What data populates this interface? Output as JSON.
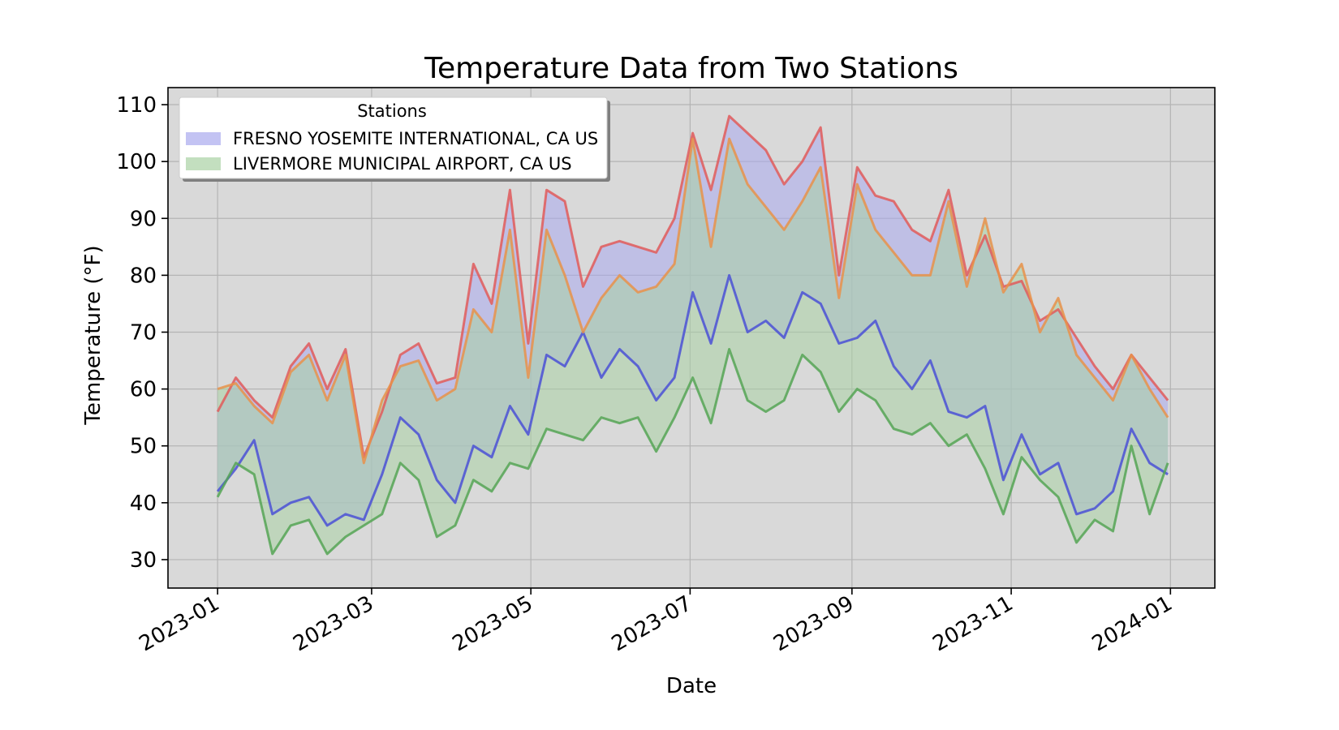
{
  "chart_data": {
    "type": "area",
    "title": "Temperature Data from Two Stations",
    "xlabel": "Date",
    "ylabel": "Temperature (°F)",
    "xlim": [
      "2022-12-13",
      "2024-01-18"
    ],
    "ylim": [
      25,
      113
    ],
    "x_ticks": [
      "2023-01-01",
      "2023-03-01",
      "2023-05-01",
      "2023-07-01",
      "2023-09-01",
      "2023-11-01",
      "2024-01-01"
    ],
    "x_tick_labels": [
      "2023-01",
      "2023-03",
      "2023-05",
      "2023-07",
      "2023-09",
      "2023-11",
      "2024-01"
    ],
    "y_ticks": [
      30,
      40,
      50,
      60,
      70,
      80,
      90,
      100,
      110
    ],
    "grid": true,
    "background": "#d9d9d9",
    "legend": {
      "title": "Stations",
      "location": "upper-left",
      "entries": [
        "FRESNO YOSEMITE INTERNATIONAL, CA US",
        "LIVERMORE MUNICIPAL AIRPORT, CA US"
      ]
    },
    "series": [
      {
        "name": "FRESNO YOSEMITE INTERNATIONAL, CA US",
        "fill_color": "#aaaaee",
        "tmax_color": "#e05a5a",
        "tmin_color": "#4a50d6",
        "x": [
          "2023-01-01",
          "2023-01-08",
          "2023-01-15",
          "2023-01-22",
          "2023-01-29",
          "2023-02-05",
          "2023-02-12",
          "2023-02-19",
          "2023-02-26",
          "2023-03-05",
          "2023-03-12",
          "2023-03-19",
          "2023-03-26",
          "2023-04-02",
          "2023-04-09",
          "2023-04-16",
          "2023-04-23",
          "2023-04-30",
          "2023-05-07",
          "2023-05-14",
          "2023-05-21",
          "2023-05-28",
          "2023-06-04",
          "2023-06-11",
          "2023-06-18",
          "2023-06-25",
          "2023-07-02",
          "2023-07-09",
          "2023-07-16",
          "2023-07-23",
          "2023-07-30",
          "2023-08-06",
          "2023-08-13",
          "2023-08-20",
          "2023-08-27",
          "2023-09-03",
          "2023-09-10",
          "2023-09-17",
          "2023-09-24",
          "2023-10-01",
          "2023-10-08",
          "2023-10-15",
          "2023-10-22",
          "2023-10-29",
          "2023-11-05",
          "2023-11-12",
          "2023-11-19",
          "2023-11-26",
          "2023-12-03",
          "2023-12-10",
          "2023-12-17",
          "2023-12-24",
          "2023-12-31"
        ],
        "tmax": [
          56,
          62,
          58,
          55,
          64,
          68,
          60,
          67,
          48,
          56,
          66,
          68,
          61,
          62,
          82,
          75,
          95,
          68,
          95,
          93,
          78,
          85,
          86,
          85,
          84,
          90,
          105,
          95,
          108,
          105,
          102,
          96,
          100,
          106,
          80,
          99,
          94,
          93,
          88,
          86,
          95,
          80,
          87,
          78,
          79,
          72,
          74,
          69,
          64,
          60,
          66,
          62,
          58
        ],
        "tmin": [
          42,
          46,
          51,
          38,
          40,
          41,
          36,
          38,
          37,
          45,
          55,
          52,
          44,
          40,
          50,
          48,
          57,
          52,
          66,
          64,
          70,
          62,
          67,
          64,
          58,
          62,
          77,
          68,
          80,
          70,
          72,
          69,
          77,
          75,
          68,
          69,
          72,
          64,
          60,
          65,
          56,
          55,
          57,
          44,
          52,
          45,
          47,
          38,
          39,
          42,
          53,
          47,
          45
        ]
      },
      {
        "name": "LIVERMORE MUNICIPAL AIRPORT, CA US",
        "fill_color": "#a9d2a4",
        "tmax_color": "#e8924a",
        "tmin_color": "#55a455",
        "x": [
          "2023-01-01",
          "2023-01-08",
          "2023-01-15",
          "2023-01-22",
          "2023-01-29",
          "2023-02-05",
          "2023-02-12",
          "2023-02-19",
          "2023-02-26",
          "2023-03-05",
          "2023-03-12",
          "2023-03-19",
          "2023-03-26",
          "2023-04-02",
          "2023-04-09",
          "2023-04-16",
          "2023-04-23",
          "2023-04-30",
          "2023-05-07",
          "2023-05-14",
          "2023-05-21",
          "2023-05-28",
          "2023-06-04",
          "2023-06-11",
          "2023-06-18",
          "2023-06-25",
          "2023-07-02",
          "2023-07-09",
          "2023-07-16",
          "2023-07-23",
          "2023-07-30",
          "2023-08-06",
          "2023-08-13",
          "2023-08-20",
          "2023-08-27",
          "2023-09-03",
          "2023-09-10",
          "2023-09-17",
          "2023-09-24",
          "2023-10-01",
          "2023-10-08",
          "2023-10-15",
          "2023-10-22",
          "2023-10-29",
          "2023-11-05",
          "2023-11-12",
          "2023-11-19",
          "2023-11-26",
          "2023-12-03",
          "2023-12-10",
          "2023-12-17",
          "2023-12-24",
          "2023-12-31"
        ],
        "tmax": [
          60,
          61,
          57,
          54,
          63,
          66,
          58,
          66,
          47,
          58,
          64,
          65,
          58,
          60,
          74,
          70,
          88,
          62,
          88,
          80,
          70,
          76,
          80,
          77,
          78,
          82,
          104,
          85,
          104,
          96,
          92,
          88,
          93,
          99,
          76,
          96,
          88,
          84,
          80,
          80,
          93,
          78,
          90,
          77,
          82,
          70,
          76,
          66,
          62,
          58,
          66,
          60,
          55
        ],
        "tmin": [
          41,
          47,
          45,
          31,
          36,
          37,
          31,
          34,
          36,
          38,
          47,
          44,
          34,
          36,
          44,
          42,
          47,
          46,
          53,
          52,
          51,
          55,
          54,
          55,
          49,
          55,
          62,
          54,
          67,
          58,
          56,
          58,
          66,
          63,
          56,
          60,
          58,
          53,
          52,
          54,
          50,
          52,
          46,
          38,
          48,
          44,
          41,
          33,
          37,
          35,
          50,
          38,
          47
        ]
      }
    ]
  }
}
